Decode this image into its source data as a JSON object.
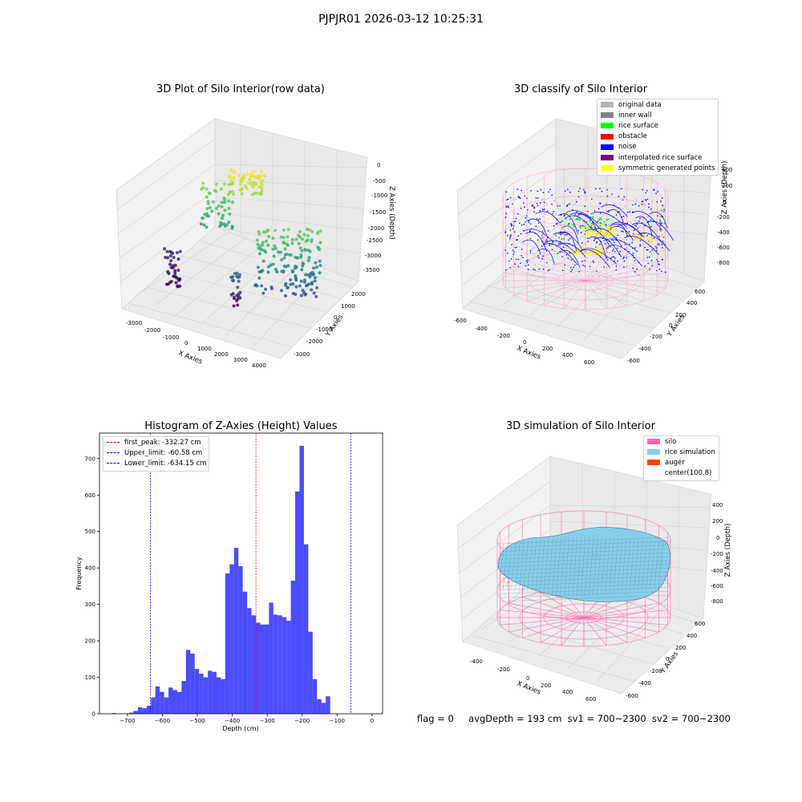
{
  "figure_title": "PJPJR01 2026-03-12 10:25:31",
  "panel1": {
    "title": "3D Plot of Silo Interior(row data)",
    "xlabel": "X Axies",
    "ylabel": "Y Axies",
    "zlabel": "Z Axies (Depth)",
    "x_ticks": [
      "-3000",
      "-2000",
      "-1000",
      "0",
      "1000",
      "2000",
      "3000",
      "4000"
    ],
    "y_ticks": [
      "2000",
      "1000",
      "0",
      "-1000",
      "-2000",
      "-3000"
    ],
    "z_ticks": [
      "0",
      "-500",
      "-1000",
      "-1500",
      "-2000",
      "-2500",
      "-3000",
      "-3500"
    ]
  },
  "panel2": {
    "title": "3D classify of Silo Interior",
    "xlabel": "X Axies",
    "ylabel": "Y Axies",
    "zlabel": "Z Axies (Depth)",
    "x_ticks": [
      "-600",
      "-400",
      "-200",
      "0",
      "200",
      "400",
      "600"
    ],
    "y_ticks": [
      "600",
      "400",
      "200",
      "0",
      "-200",
      "-400",
      "-600"
    ],
    "z_ticks": [
      "400",
      "200",
      "0",
      "-200",
      "-400",
      "-600",
      "-800"
    ],
    "legend": [
      {
        "label": "original data",
        "color": "#b3b3b3"
      },
      {
        "label": "inner wall",
        "color": "#808080"
      },
      {
        "label": "rice surface",
        "color": "#00ff00"
      },
      {
        "label": "obstacle",
        "color": "#ff0000"
      },
      {
        "label": "noise",
        "color": "#0000ff"
      },
      {
        "label": "interpolated rice surface",
        "color": "#800080"
      },
      {
        "label": "symmetric generated points",
        "color": "#ffff00"
      }
    ]
  },
  "panel4": {
    "title": "3D simulation of Silo Interior",
    "xlabel": "X Axies",
    "ylabel": "Y Axies",
    "zlabel": "Z Axies (Depth)",
    "x_ticks": [
      "-400",
      "-200",
      "0",
      "200",
      "400",
      "600"
    ],
    "y_ticks": [
      "600",
      "400",
      "200",
      "0",
      "-200",
      "-400",
      "-600"
    ],
    "z_ticks": [
      "400",
      "200",
      "0",
      "-200",
      "-400",
      "-600",
      "-800"
    ],
    "legend": [
      {
        "label": "silo",
        "color": "#ff69b4"
      },
      {
        "label": "rice simulation",
        "color": "#87ceeb"
      },
      {
        "label": "auger",
        "color": "#ff4500"
      },
      {
        "label": "center(100,8)",
        "color": "#ffffff"
      }
    ]
  },
  "status": {
    "flag": "flag = 0",
    "avg": "avgDepth = 193 cm",
    "sv1": "sv1 = 700~2300",
    "sv2": "sv2 = 700~2300"
  },
  "chart_data": {
    "type": "bar",
    "title": "Histogram of Z-Axies (Height) Values",
    "xlabel": "Depth (cm)",
    "ylabel": "Frequency",
    "xlim": [
      -780,
      30
    ],
    "ylim": [
      0,
      770
    ],
    "bin_start": -745,
    "bin_width": 12.5,
    "bar_color": "#0000ff",
    "values": [
      2,
      0,
      0,
      0,
      3,
      8,
      18,
      15,
      22,
      45,
      75,
      60,
      45,
      72,
      65,
      60,
      90,
      175,
      165,
      123,
      110,
      100,
      118,
      115,
      100,
      95,
      385,
      410,
      455,
      405,
      335,
      290,
      270,
      250,
      245,
      245,
      305,
      272,
      270,
      265,
      255,
      365,
      610,
      735,
      465,
      225,
      95,
      40,
      30,
      48
    ],
    "x_ticks": [
      -700,
      -600,
      -500,
      -400,
      -300,
      -200,
      -100,
      0
    ],
    "y_ticks": [
      0,
      100,
      200,
      300,
      400,
      500,
      600,
      700
    ],
    "vlines": [
      {
        "label": "first_peak: -332.27 cm",
        "x": -332.27,
        "color": "#ff0000"
      },
      {
        "label": "Upper_limit: -60.58 cm",
        "x": -60.58,
        "color": "#0000ff"
      },
      {
        "label": "Lower_limit: -634.15 cm",
        "x": -634.15,
        "color": "#0000ff"
      }
    ]
  }
}
